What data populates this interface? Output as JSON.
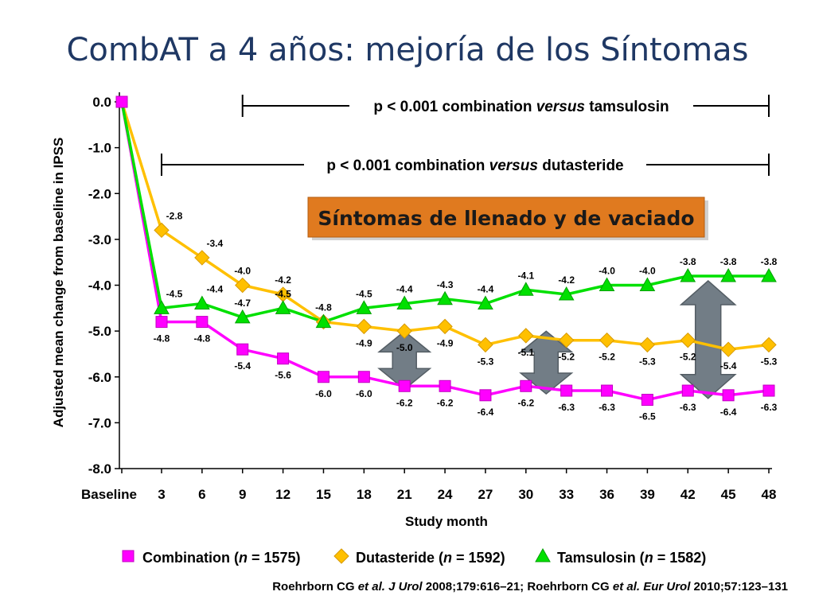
{
  "slide": {
    "title": "CombAT a 4 años: mejoría de los Síntomas",
    "callout": "Síntomas de llenado y de vaciado",
    "source_parts": [
      {
        "text": "Roehrborn CG ",
        "italic": false
      },
      {
        "text": "et al. J Urol",
        "italic": true
      },
      {
        "text": " 2008;179:616–21; Roehrborn CG ",
        "italic": false
      },
      {
        "text": "et al. Eur Urol",
        "italic": true
      },
      {
        "text": " 2010;57:123–131",
        "italic": false
      }
    ]
  },
  "colors": {
    "combination": "#ff00ff",
    "dutasteride": "#ffc000",
    "tamsulosin": "#00e000",
    "title": "#1f3864",
    "callout_bg": "#e07a1f",
    "arrow": "#6b7780"
  },
  "chart_data": {
    "type": "line",
    "xlabel": "Study month",
    "ylabel": "Adjusted mean change from baseline in IPSS",
    "x": [
      0,
      3,
      6,
      9,
      12,
      15,
      18,
      21,
      24,
      27,
      30,
      33,
      36,
      39,
      42,
      45,
      48
    ],
    "xtick_labels": [
      "Baseline",
      "3",
      "6",
      "9",
      "12",
      "15",
      "18",
      "21",
      "24",
      "27",
      "30",
      "33",
      "36",
      "39",
      "42",
      "45",
      "48"
    ],
    "yticks": [
      "0.0",
      "-1.0",
      "-2.0",
      "-3.0",
      "-4.0",
      "-5.0",
      "-6.0",
      "-7.0",
      "-8.0"
    ],
    "ylim": [
      -8,
      0
    ],
    "series": [
      {
        "key": "combination",
        "marker": "square",
        "values": [
          0,
          -4.8,
          -4.8,
          -5.4,
          -5.6,
          -6.0,
          -6.0,
          -6.2,
          -6.2,
          -6.4,
          -6.2,
          -6.3,
          -6.3,
          -6.5,
          -6.3,
          -6.4,
          -6.3
        ],
        "labels": [
          null,
          "-4.8",
          "-4.8",
          "-5.4",
          "-5.6",
          "-6.0",
          "-6.0",
          "-6.2",
          "-6.2",
          "-6.4",
          "-6.2",
          "-6.3",
          "-6.3",
          "-6.5",
          "-6.3",
          "-6.4",
          "-6.3"
        ]
      },
      {
        "key": "dutasteride",
        "marker": "diamond",
        "values": [
          0,
          -2.8,
          -3.4,
          -4.0,
          -4.2,
          -4.8,
          -4.9,
          -5.0,
          -4.9,
          -5.3,
          -5.1,
          -5.2,
          -5.2,
          -5.3,
          -5.2,
          -5.4,
          -5.3
        ],
        "labels": [
          null,
          "-2.8",
          "-3.4",
          "-4.0",
          "-4.2",
          null,
          "-4.9",
          "-5.0",
          "-4.9",
          "-5.3",
          "-5.1",
          "-5.2",
          "-5.2",
          "-5.3",
          "-5.2",
          "-5.4",
          "-5.3"
        ]
      },
      {
        "key": "tamsulosin",
        "marker": "triangle",
        "values": [
          0,
          -4.5,
          -4.4,
          -4.7,
          -4.5,
          -4.8,
          -4.5,
          -4.4,
          -4.3,
          -4.4,
          -4.1,
          -4.2,
          -4.0,
          -4.0,
          -3.8,
          -3.8,
          -3.8
        ],
        "labels": [
          null,
          "-4.5",
          "-4.4",
          "-4.7",
          "-4.5",
          "-4.8",
          "-4.5",
          "-4.4",
          "-4.3",
          "-4.4",
          "-4.1",
          "-4.2",
          "-4.0",
          "-4.0",
          "-3.8",
          "-3.8",
          "-3.8"
        ]
      }
    ],
    "significance_brackets": [
      {
        "from_month": 9,
        "to_month": 48,
        "parts": [
          {
            "text": "p < 0.001 combination ",
            "italic": false
          },
          {
            "text": "versus",
            "italic": true
          },
          {
            "text": " tamsulosin",
            "italic": false
          }
        ]
      },
      {
        "from_month": 3,
        "to_month": 48,
        "parts": [
          {
            "text": "p < 0.001 combination ",
            "italic": false
          },
          {
            "text": "versus",
            "italic": true
          },
          {
            "text": " dutasteride",
            "italic": false
          }
        ]
      }
    ],
    "difference_arrows_at_months": [
      21,
      31.5,
      43.5
    ],
    "legend": {
      "placement": "bottom",
      "items": [
        {
          "key": "combination",
          "marker": "square",
          "prefix": "Combination (",
          "n": "n",
          "suffix": " = 1575)"
        },
        {
          "key": "dutasteride",
          "marker": "diamond",
          "prefix": "Dutasteride (",
          "n": "n",
          "suffix": " = 1592)"
        },
        {
          "key": "tamsulosin",
          "marker": "triangle",
          "prefix": "Tamsulosin (",
          "n": "n",
          "suffix": " = 1582)"
        }
      ]
    }
  }
}
